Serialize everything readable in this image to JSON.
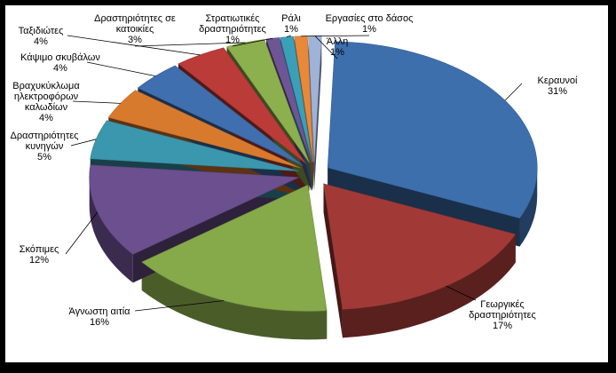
{
  "chart_data": {
    "type": "pie",
    "title": "",
    "exploded": true,
    "three_d": true,
    "slices": [
      {
        "name": "Κεραυνοί",
        "value": 31,
        "label": "31%",
        "color": "#3d6fad"
      },
      {
        "name": "Γεωργικές δραστηριότητες",
        "value": 17,
        "label": "17%",
        "color": "#a13a37"
      },
      {
        "name": "Άγνωστη αιτία",
        "value": 16,
        "label": "16%",
        "color": "#86a94a"
      },
      {
        "name": "Σκόπιμες",
        "value": 12,
        "label": "12%",
        "color": "#6b4f8f"
      },
      {
        "name": "Δραστηριότητες κυνηγών",
        "value": 5,
        "label": "5%",
        "color": "#3b97ae"
      },
      {
        "name": "Βραχυκύκλωμα ηλεκτροφόρων καλωδίων",
        "value": 4,
        "label": "4%",
        "color": "#d87a2d"
      },
      {
        "name": "Κάψιμο σκυβάλων",
        "value": 4,
        "label": "4%",
        "color": "#3f6fae"
      },
      {
        "name": "Ταξιδιώτες",
        "value": 4,
        "label": "4%",
        "color": "#bb3b38"
      },
      {
        "name": "Δραστηριότητες σε κατοικίες",
        "value": 3,
        "label": "3%",
        "color": "#8cb04e"
      },
      {
        "name": "Στρατιωτικές δραστηριότητες",
        "value": 1,
        "label": "1%",
        "color": "#6e5596"
      },
      {
        "name": "Ράλι",
        "value": 1,
        "label": "1%",
        "color": "#3aa0b9"
      },
      {
        "name": "Εργασίες στο δάσος",
        "value": 1,
        "label": "1%",
        "color": "#e8893a"
      },
      {
        "name": "Άλλη",
        "value": 1,
        "label": "1%",
        "color": "#9fb3d8"
      }
    ]
  }
}
